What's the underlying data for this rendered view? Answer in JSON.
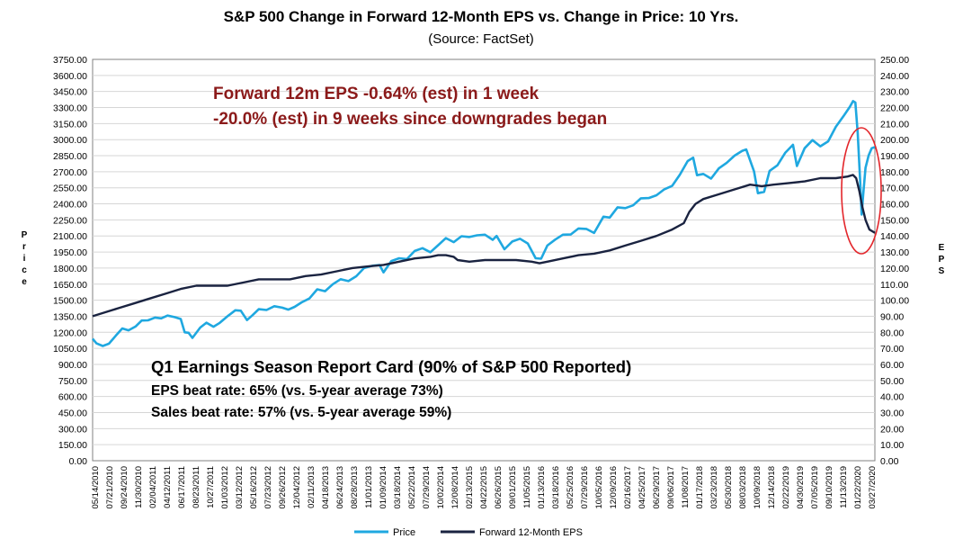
{
  "chart_data": {
    "type": "line",
    "title": "S&P 500 Change in Forward 12-Month EPS vs. Change in Price: 10 Yrs.",
    "subtitle": "(Source: FactSet)",
    "ylabel": "Price",
    "y2label": "EPS",
    "ylim": [
      0,
      3750
    ],
    "y2lim": [
      0,
      250
    ],
    "y_ticks": [
      "0.00",
      "150.00",
      "300.00",
      "450.00",
      "600.00",
      "750.00",
      "900.00",
      "1050.00",
      "1200.00",
      "1350.00",
      "1500.00",
      "1650.00",
      "1800.00",
      "1950.00",
      "2100.00",
      "2250.00",
      "2400.00",
      "2550.00",
      "2700.00",
      "2850.00",
      "3000.00",
      "3150.00",
      "3300.00",
      "3450.00",
      "3600.00",
      "3750.00"
    ],
    "y2_ticks": [
      "0.00",
      "10.00",
      "20.00",
      "30.00",
      "40.00",
      "50.00",
      "60.00",
      "70.00",
      "80.00",
      "90.00",
      "100.00",
      "110.00",
      "120.00",
      "130.00",
      "140.00",
      "150.00",
      "160.00",
      "170.00",
      "180.00",
      "190.00",
      "200.00",
      "210.00",
      "220.00",
      "230.00",
      "240.00",
      "250.00"
    ],
    "x_ticks": [
      "05/14/2010",
      "07/21/2010",
      "09/24/2010",
      "11/30/2010",
      "02/04/2011",
      "04/12/2011",
      "06/17/2011",
      "08/23/2011",
      "10/27/2011",
      "01/03/2012",
      "03/12/2012",
      "05/16/2012",
      "07/23/2012",
      "09/26/2012",
      "12/04/2012",
      "02/11/2013",
      "04/18/2013",
      "06/24/2013",
      "08/28/2013",
      "11/01/2013",
      "01/09/2014",
      "03/18/2014",
      "05/22/2014",
      "07/29/2014",
      "10/02/2014",
      "12/08/2014",
      "02/13/2015",
      "04/22/2015",
      "06/26/2015",
      "09/01/2015",
      "11/05/2015",
      "01/13/2016",
      "03/18/2016",
      "05/25/2016",
      "07/29/2016",
      "10/05/2016",
      "12/09/2016",
      "02/16/2017",
      "04/25/2017",
      "06/29/2017",
      "09/06/2017",
      "11/08/2017",
      "01/17/2018",
      "03/23/2018",
      "05/30/2018",
      "08/03/2018",
      "10/09/2018",
      "12/14/2018",
      "02/22/2019",
      "04/30/2019",
      "07/05/2019",
      "09/10/2019",
      "11/13/2019",
      "01/22/2020",
      "03/27/2020"
    ],
    "x_range": [
      2010.37,
      2020.4
    ],
    "series": [
      {
        "name": "Price",
        "color": "#1fa8e0",
        "axis": "left",
        "x": [
          2010.37,
          2010.42,
          2010.5,
          2010.58,
          2010.67,
          2010.75,
          2010.83,
          2010.92,
          2011.0,
          2011.08,
          2011.17,
          2011.25,
          2011.33,
          2011.42,
          2011.5,
          2011.55,
          2011.6,
          2011.65,
          2011.75,
          2011.83,
          2011.92,
          2012.0,
          2012.1,
          2012.2,
          2012.27,
          2012.35,
          2012.42,
          2012.5,
          2012.6,
          2012.7,
          2012.8,
          2012.88,
          2012.96,
          2013.05,
          2013.15,
          2013.25,
          2013.35,
          2013.45,
          2013.55,
          2013.65,
          2013.75,
          2013.85,
          2013.96,
          2014.05,
          2014.1,
          2014.2,
          2014.3,
          2014.4,
          2014.5,
          2014.6,
          2014.7,
          2014.8,
          2014.9,
          2015.0,
          2015.1,
          2015.2,
          2015.3,
          2015.4,
          2015.5,
          2015.55,
          2015.65,
          2015.75,
          2015.85,
          2015.95,
          2016.05,
          2016.12,
          2016.2,
          2016.3,
          2016.4,
          2016.5,
          2016.6,
          2016.7,
          2016.8,
          2016.86,
          2016.92,
          2017.0,
          2017.1,
          2017.2,
          2017.3,
          2017.4,
          2017.5,
          2017.6,
          2017.7,
          2017.8,
          2017.9,
          2018.0,
          2018.07,
          2018.12,
          2018.2,
          2018.3,
          2018.4,
          2018.5,
          2018.6,
          2018.7,
          2018.75,
          2018.85,
          2018.9,
          2018.98,
          2019.05,
          2019.15,
          2019.25,
          2019.35,
          2019.4,
          2019.5,
          2019.6,
          2019.7,
          2019.8,
          2019.9,
          2020.0,
          2020.08,
          2020.12,
          2020.15,
          2020.18,
          2020.21,
          2020.23,
          2020.25,
          2020.28,
          2020.32,
          2020.36,
          2020.4
        ],
        "values": [
          1140,
          1100,
          1060,
          1110,
          1170,
          1220,
          1230,
          1250,
          1290,
          1320,
          1330,
          1350,
          1360,
          1330,
          1340,
          1200,
          1180,
          1160,
          1240,
          1270,
          1260,
          1280,
          1370,
          1410,
          1390,
          1330,
          1360,
          1400,
          1420,
          1440,
          1410,
          1420,
          1430,
          1500,
          1520,
          1590,
          1600,
          1650,
          1680,
          1690,
          1720,
          1780,
          1830,
          1820,
          1780,
          1870,
          1880,
          1900,
          1960,
          1970,
          1960,
          2010,
          2060,
          2050,
          2090,
          2110,
          2110,
          2100,
          2080,
          2100,
          1960,
          2060,
          2070,
          2010,
          1900,
          1880,
          2030,
          2070,
          2100,
          2130,
          2170,
          2150,
          2140,
          2200,
          2260,
          2280,
          2360,
          2380,
          2390,
          2440,
          2470,
          2480,
          2520,
          2580,
          2670,
          2780,
          2840,
          2660,
          2700,
          2640,
          2720,
          2800,
          2850,
          2880,
          2920,
          2700,
          2480,
          2520,
          2700,
          2780,
          2880,
          2940,
          2770,
          2920,
          2980,
          2950,
          2980,
          3100,
          3230,
          3300,
          3380,
          3350,
          3050,
          2650,
          2300,
          2470,
          2750,
          2850,
          2900,
          2930
        ]
      },
      {
        "name": "Forward 12-Month EPS",
        "color": "#1a2340",
        "axis": "right",
        "x": [
          2010.37,
          2010.5,
          2010.7,
          2010.9,
          2011.1,
          2011.3,
          2011.5,
          2011.7,
          2011.9,
          2012.1,
          2012.3,
          2012.5,
          2012.7,
          2012.9,
          2013.1,
          2013.3,
          2013.5,
          2013.7,
          2013.9,
          2014.1,
          2014.3,
          2014.5,
          2014.7,
          2014.8,
          2014.9,
          2015.0,
          2015.05,
          2015.2,
          2015.4,
          2015.6,
          2015.8,
          2016.0,
          2016.1,
          2016.2,
          2016.4,
          2016.6,
          2016.8,
          2017.0,
          2017.2,
          2017.4,
          2017.6,
          2017.8,
          2017.95,
          2018.02,
          2018.1,
          2018.2,
          2018.4,
          2018.6,
          2018.8,
          2018.95,
          2019.1,
          2019.3,
          2019.5,
          2019.7,
          2019.9,
          2020.05,
          2020.12,
          2020.16,
          2020.2,
          2020.24,
          2020.28,
          2020.33,
          2020.4
        ],
        "values": [
          90,
          92,
          95,
          98,
          101,
          104,
          107,
          109,
          109,
          109,
          111,
          113,
          113,
          113,
          115,
          116,
          118,
          120,
          121,
          122,
          124,
          126,
          127,
          128,
          128,
          127,
          125,
          124,
          125,
          125,
          125,
          124,
          123,
          124,
          126,
          128,
          129,
          131,
          134,
          137,
          140,
          144,
          148,
          155,
          160,
          163,
          166,
          169,
          172,
          171,
          172,
          173,
          174,
          176,
          176,
          177,
          178,
          176,
          168,
          158,
          150,
          144,
          142
        ]
      }
    ],
    "annotations": [
      "Forward 12m EPS -0.64% (est) in 1 week",
      "-20.0% (est) in 9 weeks since downgrades began"
    ],
    "report_card": {
      "title": "Q1 Earnings Season Report Card (90% of S&P 500 Reported)",
      "eps_line": "EPS beat rate: 65% (vs. 5-year average 73%)",
      "sales_line": "Sales beat rate: 57% (vs. 5-year average 59%)"
    },
    "legend_position": "bottom-center",
    "grid": true
  }
}
